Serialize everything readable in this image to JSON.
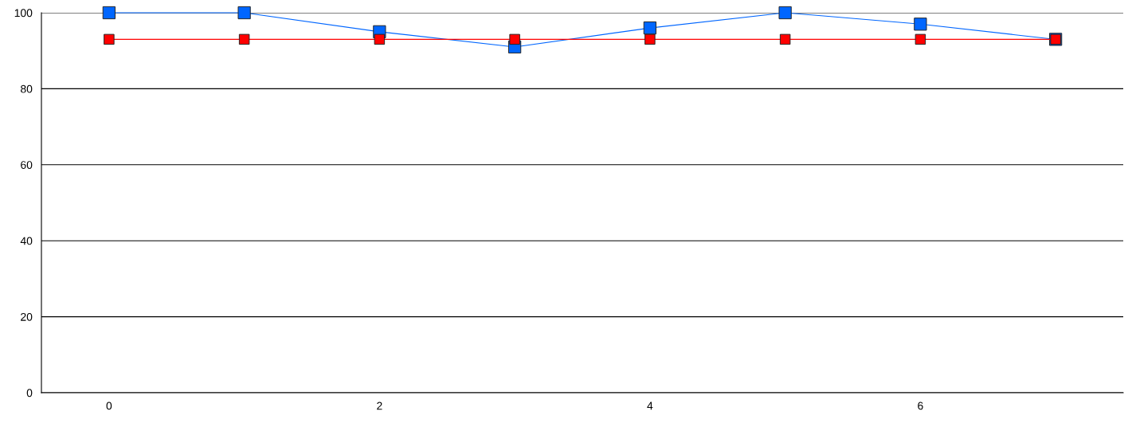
{
  "chart_data": {
    "type": "line",
    "x": [
      0,
      1,
      2,
      3,
      4,
      5,
      6,
      7
    ],
    "series": [
      {
        "color": "#0066ff",
        "values": [
          100,
          100,
          95,
          91,
          96,
          100,
          97,
          93
        ]
      },
      {
        "color": "#ff0000",
        "values": [
          93,
          93,
          93,
          93,
          93,
          93,
          93,
          93
        ]
      }
    ],
    "xlim": [
      -0.5,
      7.5
    ],
    "xticks": [
      0,
      2,
      4,
      6
    ],
    "ylim": [
      0,
      100
    ],
    "yticks": [
      0,
      20,
      40,
      60,
      80,
      100
    ],
    "grid": "y",
    "marker": "square",
    "line_style": "solid"
  }
}
